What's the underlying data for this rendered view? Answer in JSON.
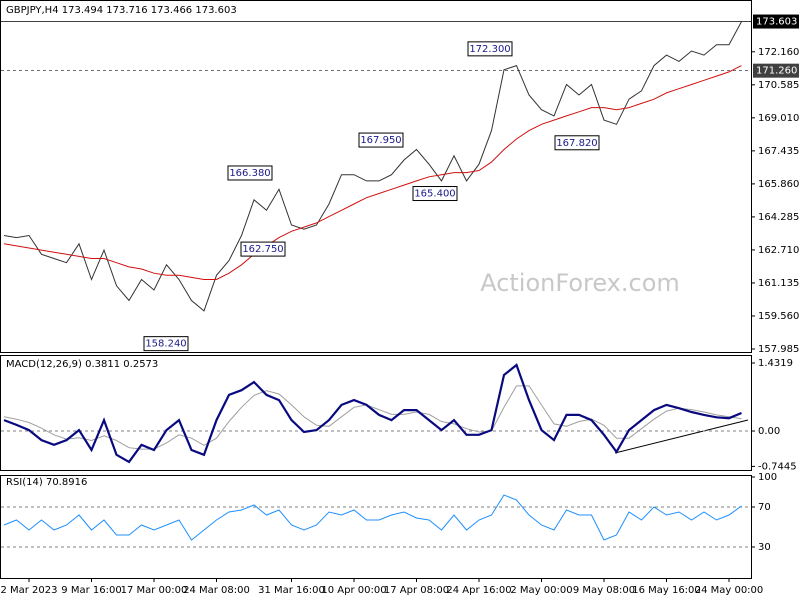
{
  "chart_data": [
    {
      "type": "line",
      "title": "GBPJPY,H4  173.494 173.716 173.466 173.603",
      "watermark": "ActionForex.com",
      "ylim": [
        157.985,
        174.63
      ],
      "yticks": [
        {
          "value": 172.16,
          "label": "172.160"
        },
        {
          "value": 170.585,
          "label": "170.585"
        },
        {
          "value": 169.01,
          "label": "169.010"
        },
        {
          "value": 167.435,
          "label": "167.435"
        },
        {
          "value": 165.86,
          "label": "165.860"
        },
        {
          "value": 164.285,
          "label": "164.285"
        },
        {
          "value": 162.71,
          "label": "162.710"
        },
        {
          "value": 161.135,
          "label": "161.135"
        },
        {
          "value": 159.56,
          "label": "159.560"
        },
        {
          "value": 157.985,
          "label": "157.985"
        }
      ],
      "price_lines": [
        {
          "value": 173.603,
          "label": "173.603",
          "color": "#000000"
        },
        {
          "value": 171.26,
          "label": "171.260",
          "color": "#404040"
        }
      ],
      "annotations": [
        {
          "value": 172.3,
          "label": "172.300"
        },
        {
          "value": 167.95,
          "label": "167.950"
        },
        {
          "value": 166.38,
          "label": "166.380"
        },
        {
          "value": 165.4,
          "label": "165.400"
        },
        {
          "value": 162.75,
          "label": "162.750"
        },
        {
          "value": 158.24,
          "label": "158.240"
        },
        {
          "value": 167.82,
          "label": "167.820"
        }
      ],
      "series": [
        {
          "color": "#333333",
          "values": [
            163.4,
            163.3,
            163.4,
            162.5,
            162.3,
            162.1,
            163.0,
            161.3,
            162.7,
            161.0,
            160.3,
            161.3,
            160.8,
            162.0,
            161.3,
            160.3,
            159.8,
            161.5,
            162.2,
            163.4,
            165.1,
            164.6,
            165.6,
            163.9,
            163.7,
            163.9,
            164.9,
            166.3,
            166.3,
            166.0,
            166.0,
            166.3,
            167.0,
            167.5,
            166.8,
            166.0,
            167.2,
            166.0,
            166.8,
            168.4,
            171.3,
            171.5,
            170.1,
            169.4,
            169.1,
            170.6,
            170.1,
            170.6,
            168.9,
            168.7,
            169.9,
            170.3,
            171.5,
            172.0,
            171.7,
            172.2,
            172.0,
            172.5,
            172.5,
            173.6
          ]
        },
        {
          "color": "#d01010",
          "values": [
            163.0,
            162.9,
            162.8,
            162.7,
            162.6,
            162.5,
            162.4,
            162.3,
            162.3,
            162.1,
            161.9,
            161.8,
            161.6,
            161.5,
            161.5,
            161.4,
            161.3,
            161.3,
            161.6,
            162.0,
            162.5,
            162.9,
            163.3,
            163.6,
            163.8,
            164.0,
            164.3,
            164.6,
            164.9,
            165.2,
            165.4,
            165.6,
            165.8,
            166.0,
            166.2,
            166.3,
            166.4,
            166.4,
            166.5,
            166.9,
            167.5,
            168.0,
            168.4,
            168.7,
            168.9,
            169.1,
            169.3,
            169.5,
            169.5,
            169.4,
            169.5,
            169.7,
            169.9,
            170.2,
            170.4,
            170.6,
            170.8,
            171.0,
            171.2,
            171.5
          ]
        }
      ]
    },
    {
      "type": "line",
      "title": "MACD(12,26,9) 0.3811 0.2573",
      "ylim": [
        -0.82,
        1.6
      ],
      "yticks": [
        1.4319,
        {
          "value": 0,
          "label": "0.00"
        },
        -0.7445
      ],
      "dashed_at": 0,
      "series": [
        {
          "color": "#a0a0a0",
          "values": [
            0.3,
            0.25,
            0.18,
            0.06,
            -0.08,
            -0.17,
            -0.14,
            -0.2,
            -0.1,
            -0.2,
            -0.35,
            -0.38,
            -0.38,
            -0.25,
            -0.08,
            -0.15,
            -0.3,
            -0.15,
            0.2,
            0.5,
            0.75,
            0.85,
            0.78,
            0.55,
            0.3,
            0.12,
            0.1,
            0.3,
            0.5,
            0.55,
            0.45,
            0.35,
            0.35,
            0.4,
            0.35,
            0.2,
            0.15,
            0.05,
            -0.02,
            0.0,
            0.5,
            0.95,
            0.95,
            0.55,
            0.15,
            0.1,
            0.2,
            0.25,
            0.12,
            -0.15,
            -0.15,
            0.05,
            0.25,
            0.42,
            0.48,
            0.45,
            0.4,
            0.34,
            0.3,
            0.26
          ]
        },
        {
          "color": "#0a0a80",
          "values": [
            0.23,
            0.13,
            0.02,
            -0.19,
            -0.29,
            -0.19,
            0.02,
            -0.4,
            0.23,
            -0.5,
            -0.65,
            -0.29,
            -0.4,
            0.02,
            0.23,
            -0.4,
            -0.5,
            0.23,
            0.76,
            0.86,
            1.03,
            0.76,
            0.65,
            0.23,
            -0.02,
            0.02,
            0.23,
            0.55,
            0.65,
            0.55,
            0.34,
            0.23,
            0.44,
            0.44,
            0.23,
            0.02,
            0.23,
            -0.08,
            -0.08,
            0.02,
            1.18,
            1.39,
            0.65,
            0.02,
            -0.19,
            0.34,
            0.34,
            0.23,
            -0.08,
            -0.44,
            0.02,
            0.23,
            0.44,
            0.55,
            0.48,
            0.4,
            0.34,
            0.29,
            0.27,
            0.38
          ]
        }
      ]
    },
    {
      "type": "line",
      "title": "RSI(14) 70.8916",
      "ylim": [
        0,
        102
      ],
      "yticks": [
        100,
        70,
        30
      ],
      "dashed_at_ticks": true,
      "categories": [
        null,
        null,
        "2 Mar 2023",
        null,
        null,
        null,
        null,
        "9 Mar 16:00",
        null,
        null,
        null,
        null,
        "17 Mar 00:00",
        null,
        null,
        null,
        null,
        "24 Mar 08:00",
        null,
        null,
        null,
        null,
        null,
        "31 Mar 16:00",
        null,
        null,
        null,
        null,
        "10 Apr 00:00",
        null,
        null,
        null,
        null,
        "17 Apr 08:00",
        null,
        null,
        null,
        null,
        "24 Apr 16:00",
        null,
        null,
        null,
        null,
        "2 May 00:00",
        null,
        null,
        null,
        null,
        "9 May 08:00",
        null,
        null,
        null,
        null,
        "16 May 16:00",
        null,
        null,
        null,
        null,
        "24 May 00:00",
        null
      ],
      "series": [
        {
          "color": "#1e90ff",
          "values": [
            52,
            57,
            47,
            57,
            47,
            52,
            62,
            47,
            57,
            42,
            42,
            52,
            47,
            52,
            57,
            37,
            47,
            57,
            65,
            67,
            72,
            62,
            67,
            52,
            47,
            52,
            65,
            62,
            67,
            57,
            57,
            62,
            65,
            59,
            57,
            47,
            62,
            47,
            57,
            62,
            82,
            77,
            62,
            52,
            47,
            67,
            62,
            62,
            37,
            42,
            65,
            57,
            70,
            62,
            65,
            57,
            65,
            57,
            62,
            71
          ]
        }
      ]
    }
  ]
}
